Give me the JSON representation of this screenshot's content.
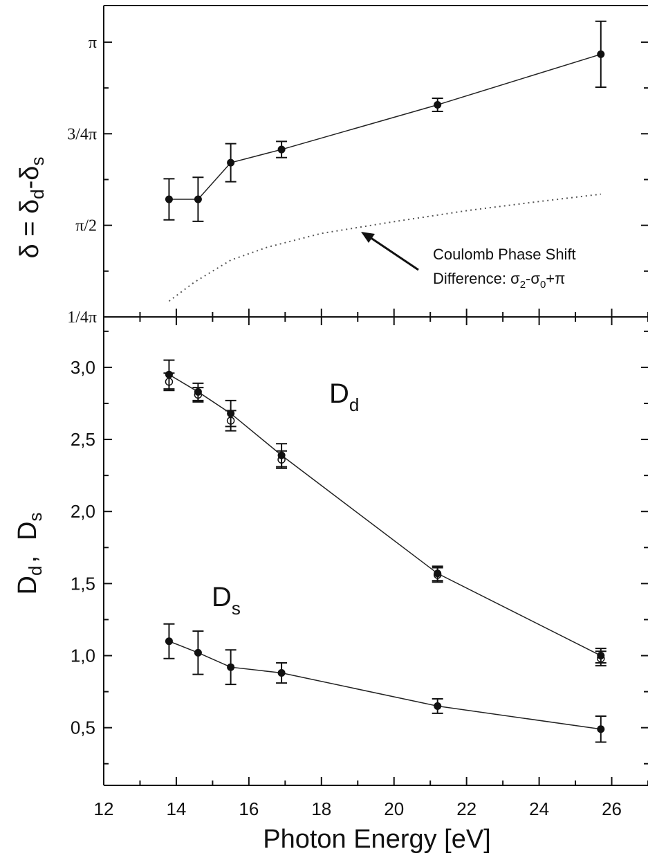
{
  "chart_data": [
    {
      "type": "line",
      "panel": "top",
      "ylabel": "δ = δ_d - δ_s",
      "ylabel_parts": {
        "main": "δ = δ",
        "sub1": "d",
        "mid": "-δ",
        "sub2": "s"
      },
      "ylim_pi": [
        0.25,
        1.1
      ],
      "y_ticks": [
        {
          "value": 0.25,
          "label": "1/4π"
        },
        {
          "value": 0.5,
          "label": "π/2"
        },
        {
          "value": 0.75,
          "label": "3/4π"
        },
        {
          "value": 1.0,
          "label": "π"
        }
      ],
      "series": [
        {
          "style": "filled-circle",
          "x": [
            13.8,
            14.6,
            15.5,
            16.9,
            21.2,
            25.7
          ],
          "y": [
            0.571,
            0.571,
            0.671,
            0.707,
            0.829,
            0.967
          ],
          "err": [
            0.056,
            0.06,
            0.052,
            0.022,
            0.018,
            0.09
          ]
        },
        {
          "style": "dotted-line",
          "x": [
            13.8,
            14.5,
            15.5,
            16.5,
            18,
            20,
            22,
            24,
            25.7
          ],
          "y": [
            0.293,
            0.345,
            0.405,
            0.44,
            0.478,
            0.51,
            0.54,
            0.565,
            0.585
          ]
        }
      ],
      "annotation": {
        "line1": "Coulomb Phase Shift",
        "line2_prefix": "Difference: σ",
        "line2_sub1": "2",
        "line2_mid": "-σ",
        "line2_sub2": "0",
        "line2_suffix": "+π"
      }
    },
    {
      "type": "line",
      "panel": "bottom",
      "ylabel_parts": {
        "d": "D",
        "d_sub": "d",
        "comma": ",",
        "s": "D",
        "s_sub": "s"
      },
      "xlabel": "Photon Energy [eV]",
      "xlim": [
        12,
        27
      ],
      "x_ticks": [
        "12",
        "14",
        "16",
        "18",
        "20",
        "22",
        "24",
        "26"
      ],
      "ylim": [
        0.1,
        3.35
      ],
      "y_ticks": [
        "0,5",
        "1,0",
        "1,5",
        "2,0",
        "2,5",
        "3,0"
      ],
      "series": [
        {
          "name": "D_d",
          "label_main": "D",
          "label_sub": "d",
          "style": "filled-circle",
          "x": [
            13.8,
            14.6,
            15.5,
            16.9,
            21.2,
            25.7
          ],
          "y": [
            2.95,
            2.83,
            2.68,
            2.39,
            1.57,
            1.0
          ],
          "err": [
            0.1,
            0.06,
            0.09,
            0.08,
            0.05,
            0.05
          ]
        },
        {
          "name": "D_d (open)",
          "style": "open-circle",
          "x": [
            13.8,
            14.6,
            15.5,
            16.9,
            21.2,
            25.7
          ],
          "y": [
            2.9,
            2.81,
            2.63,
            2.36,
            1.56,
            0.98
          ],
          "err": [
            0.06,
            0.05,
            0.07,
            0.06,
            0.05,
            0.05
          ]
        },
        {
          "name": "D_s",
          "label_main": "D",
          "label_sub": "s",
          "style": "filled-circle",
          "x": [
            13.8,
            14.6,
            15.5,
            16.9,
            21.2,
            25.7
          ],
          "y": [
            1.1,
            1.02,
            0.92,
            0.88,
            0.65,
            0.49
          ],
          "err": [
            0.12,
            0.15,
            0.12,
            0.07,
            0.05,
            0.09
          ]
        }
      ]
    }
  ]
}
